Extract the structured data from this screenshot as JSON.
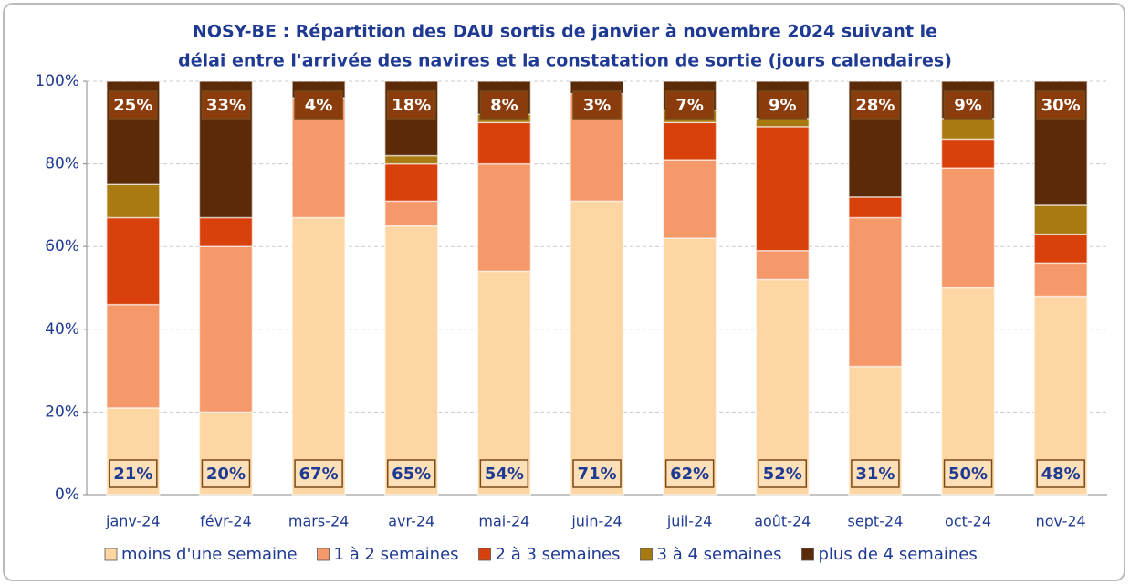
{
  "chart_data": {
    "type": "stacked_bar",
    "title": [
      "NOSY-BE : Répartition des DAU sortis de janvier à novembre 2024 suivant le",
      "délai entre l'arrivée des navires et la constatation de sortie (jours calendaires)"
    ],
    "categories": [
      "janv-24",
      "févr-24",
      "mars-24",
      "avr-24",
      "mai-24",
      "juin-24",
      "juil-24",
      "août-24",
      "sept-24",
      "oct-24",
      "nov-24"
    ],
    "series": [
      {
        "name": "moins d'une semaine",
        "color": "#fdd6a4",
        "values": [
          21,
          20,
          67,
          65,
          54,
          71,
          62,
          52,
          31,
          50,
          48
        ],
        "value_labels": [
          "21%",
          "20%",
          "67%",
          "65%",
          "54%",
          "71%",
          "62%",
          "52%",
          "31%",
          "50%",
          "48%"
        ]
      },
      {
        "name": "1 à 2 semaines",
        "color": "#f5986a",
        "values": [
          25,
          40,
          29,
          6,
          26,
          26,
          19,
          7,
          36,
          29,
          8
        ]
      },
      {
        "name": "2 à 3 semaines",
        "color": "#d8400c",
        "values": [
          21,
          7,
          0,
          9,
          10,
          0,
          9,
          30,
          5,
          7,
          7
        ]
      },
      {
        "name": "3 à 4 semaines",
        "color": "#a97a12",
        "values": [
          8,
          0,
          0,
          2,
          2,
          0,
          3,
          2,
          0,
          5,
          7
        ]
      },
      {
        "name": "plus de 4 semaines",
        "color": "#5b2b09",
        "values": [
          25,
          33,
          4,
          18,
          8,
          3,
          7,
          9,
          28,
          9,
          30
        ],
        "value_labels": [
          "25%",
          "33%",
          "4%",
          "18%",
          "8%",
          "3%",
          "7%",
          "9%",
          "28%",
          "9%",
          "30%"
        ]
      }
    ],
    "ylim": [
      0,
      100
    ],
    "yticks": [
      {
        "value": 0,
        "label": "0%"
      },
      {
        "value": 20,
        "label": "20%"
      },
      {
        "value": 40,
        "label": "40%"
      },
      {
        "value": 60,
        "label": "60%"
      },
      {
        "value": 80,
        "label": "80%"
      },
      {
        "value": 100,
        "label": "100%"
      }
    ],
    "grid": true,
    "legend": "bottom"
  }
}
